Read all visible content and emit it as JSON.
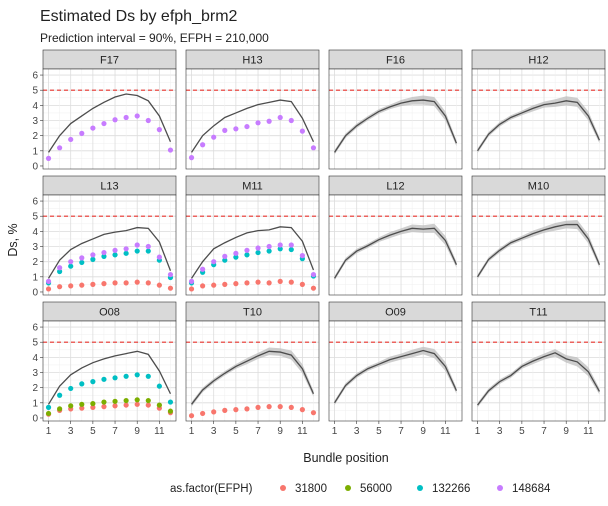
{
  "chart_data": {
    "type": "line",
    "title": "Estimated Ds by efph_brm2",
    "subtitle": "Prediction interval = 90%, EFPH = 210,000",
    "xlabel": "Bundle position",
    "ylabel": "Ds, %",
    "xlim": [
      0.5,
      12.5
    ],
    "ylim": [
      -0.2,
      6.4
    ],
    "x_ticks": [
      1,
      3,
      5,
      7,
      9,
      11
    ],
    "y_ticks": [
      0,
      1,
      2,
      3,
      4,
      5,
      6
    ],
    "x": [
      1,
      2,
      3,
      4,
      5,
      6,
      7,
      8,
      9,
      10,
      11,
      12
    ],
    "reference_line": {
      "y": 5,
      "color": "#e8322c",
      "style": "dashed"
    },
    "grid": true,
    "legend": {
      "title": "as.factor(EFPH)",
      "position": "bottom",
      "entries": [
        {
          "label": "31800",
          "color": "#f8766d"
        },
        {
          "label": "56000",
          "color": "#7cae00"
        },
        {
          "label": "132266",
          "color": "#00bfc4"
        },
        {
          "label": "148684",
          "color": "#c77cff"
        }
      ]
    },
    "panels": [
      {
        "label": "F17",
        "line": [
          0.9,
          2.0,
          2.8,
          3.3,
          3.8,
          4.2,
          4.55,
          4.75,
          4.65,
          4.3,
          3.3,
          1.6
        ],
        "band": null,
        "points": [
          {
            "group": "148684",
            "y": [
              0.5,
              1.2,
              1.75,
              2.15,
              2.5,
              2.8,
              3.05,
              3.2,
              3.3,
              3.0,
              2.4,
              1.05
            ]
          }
        ]
      },
      {
        "label": "H13",
        "line": [
          0.9,
          2.0,
          2.65,
          3.2,
          3.5,
          3.8,
          4.05,
          4.2,
          4.35,
          4.25,
          3.15,
          1.6
        ],
        "band": null,
        "points": [
          {
            "group": "148684",
            "y": [
              0.55,
              1.4,
              1.9,
              2.35,
              2.45,
              2.6,
              2.85,
              2.95,
              3.2,
              3.0,
              2.3,
              1.2
            ]
          }
        ]
      },
      {
        "label": "F16",
        "line": [
          0.9,
          2.0,
          2.65,
          3.15,
          3.6,
          3.9,
          4.15,
          4.3,
          4.35,
          4.25,
          3.3,
          1.5
        ],
        "band": [
          [
            0.75,
            1.05
          ],
          [
            1.85,
            2.15
          ],
          [
            2.5,
            2.8
          ],
          [
            3.0,
            3.3
          ],
          [
            3.45,
            3.75
          ],
          [
            3.75,
            4.05
          ],
          [
            3.95,
            4.35
          ],
          [
            4.05,
            4.55
          ],
          [
            4.05,
            4.65
          ],
          [
            3.95,
            4.55
          ],
          [
            3.0,
            3.6
          ],
          [
            1.3,
            1.7
          ]
        ],
        "points": []
      },
      {
        "label": "H12",
        "line": [
          1.0,
          2.1,
          2.75,
          3.2,
          3.5,
          3.8,
          4.05,
          4.15,
          4.3,
          4.2,
          3.3,
          1.7
        ],
        "band": [
          [
            0.85,
            1.15
          ],
          [
            1.95,
            2.25
          ],
          [
            2.6,
            2.9
          ],
          [
            3.05,
            3.35
          ],
          [
            3.35,
            3.65
          ],
          [
            3.6,
            4.0
          ],
          [
            3.85,
            4.25
          ],
          [
            3.9,
            4.4
          ],
          [
            4.0,
            4.6
          ],
          [
            3.9,
            4.5
          ],
          [
            3.0,
            3.6
          ],
          [
            1.5,
            1.9
          ]
        ],
        "points": []
      },
      {
        "label": "L13",
        "line": [
          0.9,
          2.1,
          2.8,
          3.2,
          3.5,
          3.8,
          3.95,
          4.05,
          4.25,
          4.2,
          3.3,
          1.4
        ],
        "band": null,
        "points": [
          {
            "group": "31800",
            "y": [
              0.2,
              0.35,
              0.4,
              0.45,
              0.5,
              0.55,
              0.6,
              0.6,
              0.65,
              0.6,
              0.45,
              0.25
            ]
          },
          {
            "group": "132266",
            "y": [
              0.6,
              1.35,
              1.7,
              1.95,
              2.15,
              2.35,
              2.45,
              2.55,
              2.7,
              2.7,
              2.1,
              0.95
            ]
          },
          {
            "group": "148684",
            "y": [
              0.7,
              1.6,
              2.0,
              2.25,
              2.45,
              2.6,
              2.75,
              2.85,
              3.1,
              3.0,
              2.3,
              1.15
            ]
          }
        ]
      },
      {
        "label": "M11",
        "line": [
          0.9,
          2.0,
          2.85,
          3.25,
          3.6,
          3.9,
          4.05,
          4.1,
          4.3,
          4.25,
          3.35,
          1.45
        ],
        "band": null,
        "points": [
          {
            "group": "31800",
            "y": [
              0.2,
              0.4,
              0.45,
              0.5,
              0.55,
              0.6,
              0.65,
              0.6,
              0.7,
              0.65,
              0.5,
              0.25
            ]
          },
          {
            "group": "132266",
            "y": [
              0.6,
              1.3,
              1.8,
              2.1,
              2.3,
              2.45,
              2.6,
              2.7,
              2.85,
              2.8,
              2.2,
              1.05
            ]
          },
          {
            "group": "148684",
            "y": [
              0.7,
              1.5,
              2.0,
              2.35,
              2.55,
              2.75,
              2.9,
              3.0,
              3.1,
              3.1,
              2.4,
              1.15
            ]
          }
        ]
      },
      {
        "label": "L12",
        "line": [
          0.9,
          2.1,
          2.7,
          3.05,
          3.45,
          3.75,
          4.0,
          4.2,
          4.15,
          4.2,
          3.4,
          1.8
        ],
        "band": [
          [
            0.75,
            1.05
          ],
          [
            1.95,
            2.25
          ],
          [
            2.55,
            2.85
          ],
          [
            2.9,
            3.2
          ],
          [
            3.3,
            3.6
          ],
          [
            3.55,
            3.95
          ],
          [
            3.8,
            4.2
          ],
          [
            3.95,
            4.45
          ],
          [
            3.9,
            4.4
          ],
          [
            3.9,
            4.5
          ],
          [
            3.1,
            3.7
          ],
          [
            1.6,
            2.0
          ]
        ],
        "points": []
      },
      {
        "label": "M10",
        "line": [
          1.0,
          2.15,
          2.75,
          3.25,
          3.55,
          3.85,
          4.1,
          4.3,
          4.45,
          4.45,
          3.5,
          1.8
        ],
        "band": [
          [
            0.85,
            1.15
          ],
          [
            2.0,
            2.3
          ],
          [
            2.6,
            2.9
          ],
          [
            3.1,
            3.4
          ],
          [
            3.4,
            3.7
          ],
          [
            3.65,
            4.05
          ],
          [
            3.9,
            4.3
          ],
          [
            4.05,
            4.55
          ],
          [
            4.2,
            4.7
          ],
          [
            4.15,
            4.75
          ],
          [
            3.2,
            3.8
          ],
          [
            1.6,
            2.0
          ]
        ],
        "points": []
      },
      {
        "label": "O08",
        "line": [
          0.9,
          2.1,
          2.85,
          3.3,
          3.65,
          3.9,
          4.1,
          4.25,
          4.4,
          4.2,
          3.1,
          1.6
        ],
        "band": null,
        "points": [
          {
            "group": "31800",
            "y": [
              0.25,
              0.5,
              0.6,
              0.65,
              0.7,
              0.75,
              0.8,
              0.85,
              0.9,
              0.85,
              0.65,
              0.35
            ]
          },
          {
            "group": "56000",
            "y": [
              0.3,
              0.6,
              0.8,
              0.9,
              0.95,
              1.05,
              1.1,
              1.15,
              1.2,
              1.15,
              0.85,
              0.45
            ]
          },
          {
            "group": "132266",
            "y": [
              0.7,
              1.5,
              1.95,
              2.25,
              2.4,
              2.55,
              2.65,
              2.75,
              2.85,
              2.75,
              2.1,
              1.05
            ]
          }
        ]
      },
      {
        "label": "T10",
        "line": [
          0.9,
          1.85,
          2.45,
          2.95,
          3.4,
          3.75,
          4.1,
          4.4,
          4.35,
          4.15,
          3.25,
          1.6
        ],
        "band": [
          [
            0.75,
            1.05
          ],
          [
            1.7,
            2.0
          ],
          [
            2.3,
            2.6
          ],
          [
            2.8,
            3.1
          ],
          [
            3.25,
            3.55
          ],
          [
            3.55,
            3.95
          ],
          [
            3.9,
            4.3
          ],
          [
            4.15,
            4.65
          ],
          [
            4.1,
            4.6
          ],
          [
            3.85,
            4.45
          ],
          [
            2.95,
            3.55
          ],
          [
            1.4,
            1.8
          ]
        ],
        "points": [
          {
            "group": "31800",
            "y": [
              0.15,
              0.3,
              0.4,
              0.5,
              0.55,
              0.6,
              0.7,
              0.75,
              0.75,
              0.7,
              0.55,
              0.35
            ]
          }
        ]
      },
      {
        "label": "O09",
        "line": [
          1.0,
          2.15,
          2.8,
          3.25,
          3.55,
          3.85,
          4.05,
          4.25,
          4.45,
          4.25,
          3.4,
          1.8
        ],
        "band": [
          [
            0.85,
            1.15
          ],
          [
            2.0,
            2.3
          ],
          [
            2.65,
            2.95
          ],
          [
            3.1,
            3.4
          ],
          [
            3.4,
            3.7
          ],
          [
            3.65,
            4.05
          ],
          [
            3.85,
            4.25
          ],
          [
            4.0,
            4.5
          ],
          [
            4.2,
            4.7
          ],
          [
            3.95,
            4.55
          ],
          [
            3.1,
            3.7
          ],
          [
            1.6,
            2.0
          ]
        ],
        "points": []
      },
      {
        "label": "T11",
        "line": [
          0.85,
          1.8,
          2.4,
          2.8,
          3.4,
          3.75,
          4.05,
          4.3,
          3.9,
          3.7,
          3.05,
          1.75
        ],
        "band": [
          [
            0.7,
            1.0
          ],
          [
            1.65,
            1.95
          ],
          [
            2.25,
            2.55
          ],
          [
            2.65,
            2.95
          ],
          [
            3.25,
            3.55
          ],
          [
            3.55,
            3.95
          ],
          [
            3.85,
            4.25
          ],
          [
            4.05,
            4.55
          ],
          [
            3.65,
            4.15
          ],
          [
            3.4,
            4.0
          ],
          [
            2.75,
            3.35
          ],
          [
            1.55,
            1.95
          ]
        ],
        "points": []
      }
    ]
  }
}
